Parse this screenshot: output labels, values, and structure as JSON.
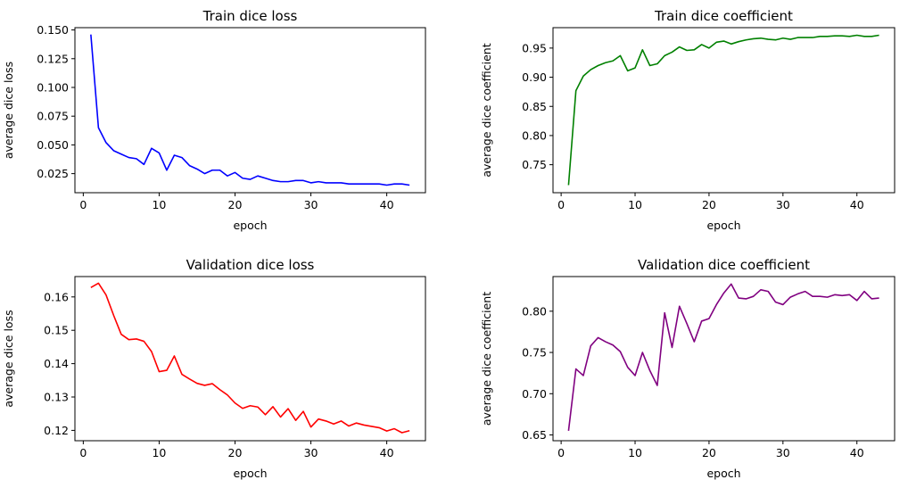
{
  "chart_data": [
    {
      "type": "line",
      "title": "Train dice loss",
      "xlabel": "epoch",
      "ylabel": "average dice loss",
      "color": "#0000ff",
      "xlim": [
        -1.1,
        45.1
      ],
      "ylim": [
        0.0084,
        0.152
      ],
      "xticks": [
        0,
        10,
        20,
        30,
        40
      ],
      "yticks": [
        0.025,
        0.05,
        0.075,
        0.1,
        0.125,
        0.15
      ],
      "ytick_labels": [
        "0.025",
        "0.050",
        "0.075",
        "0.100",
        "0.125",
        "0.150"
      ],
      "grid": false,
      "x": [
        1,
        2,
        3,
        4,
        5,
        6,
        7,
        8,
        9,
        10,
        11,
        12,
        13,
        14,
        15,
        16,
        17,
        18,
        19,
        20,
        21,
        22,
        23,
        24,
        25,
        26,
        27,
        28,
        29,
        30,
        31,
        32,
        33,
        34,
        35,
        36,
        37,
        38,
        39,
        40,
        41,
        42,
        43
      ],
      "y": [
        0.146,
        0.065,
        0.052,
        0.045,
        0.042,
        0.039,
        0.038,
        0.033,
        0.047,
        0.043,
        0.028,
        0.041,
        0.039,
        0.032,
        0.029,
        0.025,
        0.028,
        0.028,
        0.023,
        0.026,
        0.021,
        0.02,
        0.023,
        0.021,
        0.019,
        0.018,
        0.018,
        0.019,
        0.019,
        0.017,
        0.018,
        0.017,
        0.017,
        0.017,
        0.016,
        0.016,
        0.016,
        0.016,
        0.016,
        0.015,
        0.016,
        0.016,
        0.015
      ]
    },
    {
      "type": "line",
      "title": "Train dice coefficient",
      "xlabel": "epoch",
      "ylabel": "average dice coefficient",
      "color": "#008000",
      "xlim": [
        -1.1,
        45.1
      ],
      "ylim": [
        0.702,
        0.985
      ],
      "xticks": [
        0,
        10,
        20,
        30,
        40
      ],
      "yticks": [
        0.75,
        0.8,
        0.85,
        0.9,
        0.95
      ],
      "ytick_labels": [
        "0.75",
        "0.80",
        "0.85",
        "0.90",
        "0.95"
      ],
      "grid": false,
      "x": [
        1,
        2,
        3,
        4,
        5,
        6,
        7,
        8,
        9,
        10,
        11,
        12,
        13,
        14,
        15,
        16,
        17,
        18,
        19,
        20,
        21,
        22,
        23,
        24,
        25,
        26,
        27,
        28,
        29,
        30,
        31,
        32,
        33,
        34,
        35,
        36,
        37,
        38,
        39,
        40,
        41,
        42,
        43
      ],
      "y": [
        0.715,
        0.877,
        0.902,
        0.913,
        0.92,
        0.925,
        0.928,
        0.937,
        0.911,
        0.916,
        0.947,
        0.92,
        0.923,
        0.937,
        0.943,
        0.952,
        0.946,
        0.947,
        0.956,
        0.95,
        0.96,
        0.962,
        0.957,
        0.961,
        0.964,
        0.966,
        0.967,
        0.965,
        0.964,
        0.967,
        0.965,
        0.968,
        0.968,
        0.968,
        0.97,
        0.97,
        0.971,
        0.971,
        0.97,
        0.972,
        0.97,
        0.97,
        0.972
      ]
    },
    {
      "type": "line",
      "title": "Validation dice loss",
      "xlabel": "epoch",
      "ylabel": "average dice loss",
      "color": "#ff0000",
      "xlim": [
        -1.1,
        45.1
      ],
      "ylim": [
        0.1169,
        0.1661
      ],
      "xticks": [
        0,
        10,
        20,
        30,
        40
      ],
      "yticks": [
        0.12,
        0.13,
        0.14,
        0.15,
        0.16
      ],
      "ytick_labels": [
        "0.12",
        "0.13",
        "0.14",
        "0.15",
        "0.16"
      ],
      "grid": false,
      "x": [
        1,
        2,
        3,
        4,
        5,
        6,
        7,
        8,
        9,
        10,
        11,
        12,
        13,
        14,
        15,
        16,
        17,
        18,
        19,
        20,
        21,
        22,
        23,
        24,
        25,
        26,
        27,
        28,
        29,
        30,
        31,
        32,
        33,
        34,
        35,
        36,
        37,
        38,
        39,
        40,
        41,
        42,
        43
      ],
      "y": [
        0.1628,
        0.1641,
        0.1606,
        0.1545,
        0.1488,
        0.1472,
        0.1474,
        0.1467,
        0.1436,
        0.1376,
        0.138,
        0.1423,
        0.1368,
        0.1354,
        0.1341,
        0.1335,
        0.134,
        0.1322,
        0.1306,
        0.1282,
        0.1266,
        0.1274,
        0.127,
        0.1247,
        0.1271,
        0.124,
        0.1265,
        0.123,
        0.1257,
        0.121,
        0.1234,
        0.1228,
        0.1219,
        0.1228,
        0.1213,
        0.1222,
        0.1216,
        0.1212,
        0.1208,
        0.1198,
        0.1205,
        0.1193,
        0.1199
      ]
    },
    {
      "type": "line",
      "title": "Validation dice coefficient",
      "xlabel": "epoch",
      "ylabel": "average dice coefficient",
      "color": "#800080",
      "xlim": [
        -1.1,
        45.1
      ],
      "ylim": [
        0.643,
        0.842
      ],
      "xticks": [
        0,
        10,
        20,
        30,
        40
      ],
      "yticks": [
        0.65,
        0.7,
        0.75,
        0.8
      ],
      "ytick_labels": [
        "0.65",
        "0.70",
        "0.75",
        "0.80"
      ],
      "grid": false,
      "x": [
        1,
        2,
        3,
        4,
        5,
        6,
        7,
        8,
        9,
        10,
        11,
        12,
        13,
        14,
        15,
        16,
        17,
        18,
        19,
        20,
        21,
        22,
        23,
        24,
        25,
        26,
        27,
        28,
        29,
        30,
        31,
        32,
        33,
        34,
        35,
        36,
        37,
        38,
        39,
        40,
        41,
        42,
        43
      ],
      "y": [
        0.655,
        0.73,
        0.722,
        0.758,
        0.768,
        0.763,
        0.759,
        0.751,
        0.732,
        0.722,
        0.75,
        0.728,
        0.71,
        0.798,
        0.756,
        0.806,
        0.785,
        0.763,
        0.788,
        0.791,
        0.808,
        0.822,
        0.833,
        0.816,
        0.815,
        0.818,
        0.826,
        0.824,
        0.811,
        0.808,
        0.817,
        0.821,
        0.824,
        0.818,
        0.818,
        0.817,
        0.82,
        0.819,
        0.82,
        0.813,
        0.824,
        0.815,
        0.816
      ]
    }
  ]
}
